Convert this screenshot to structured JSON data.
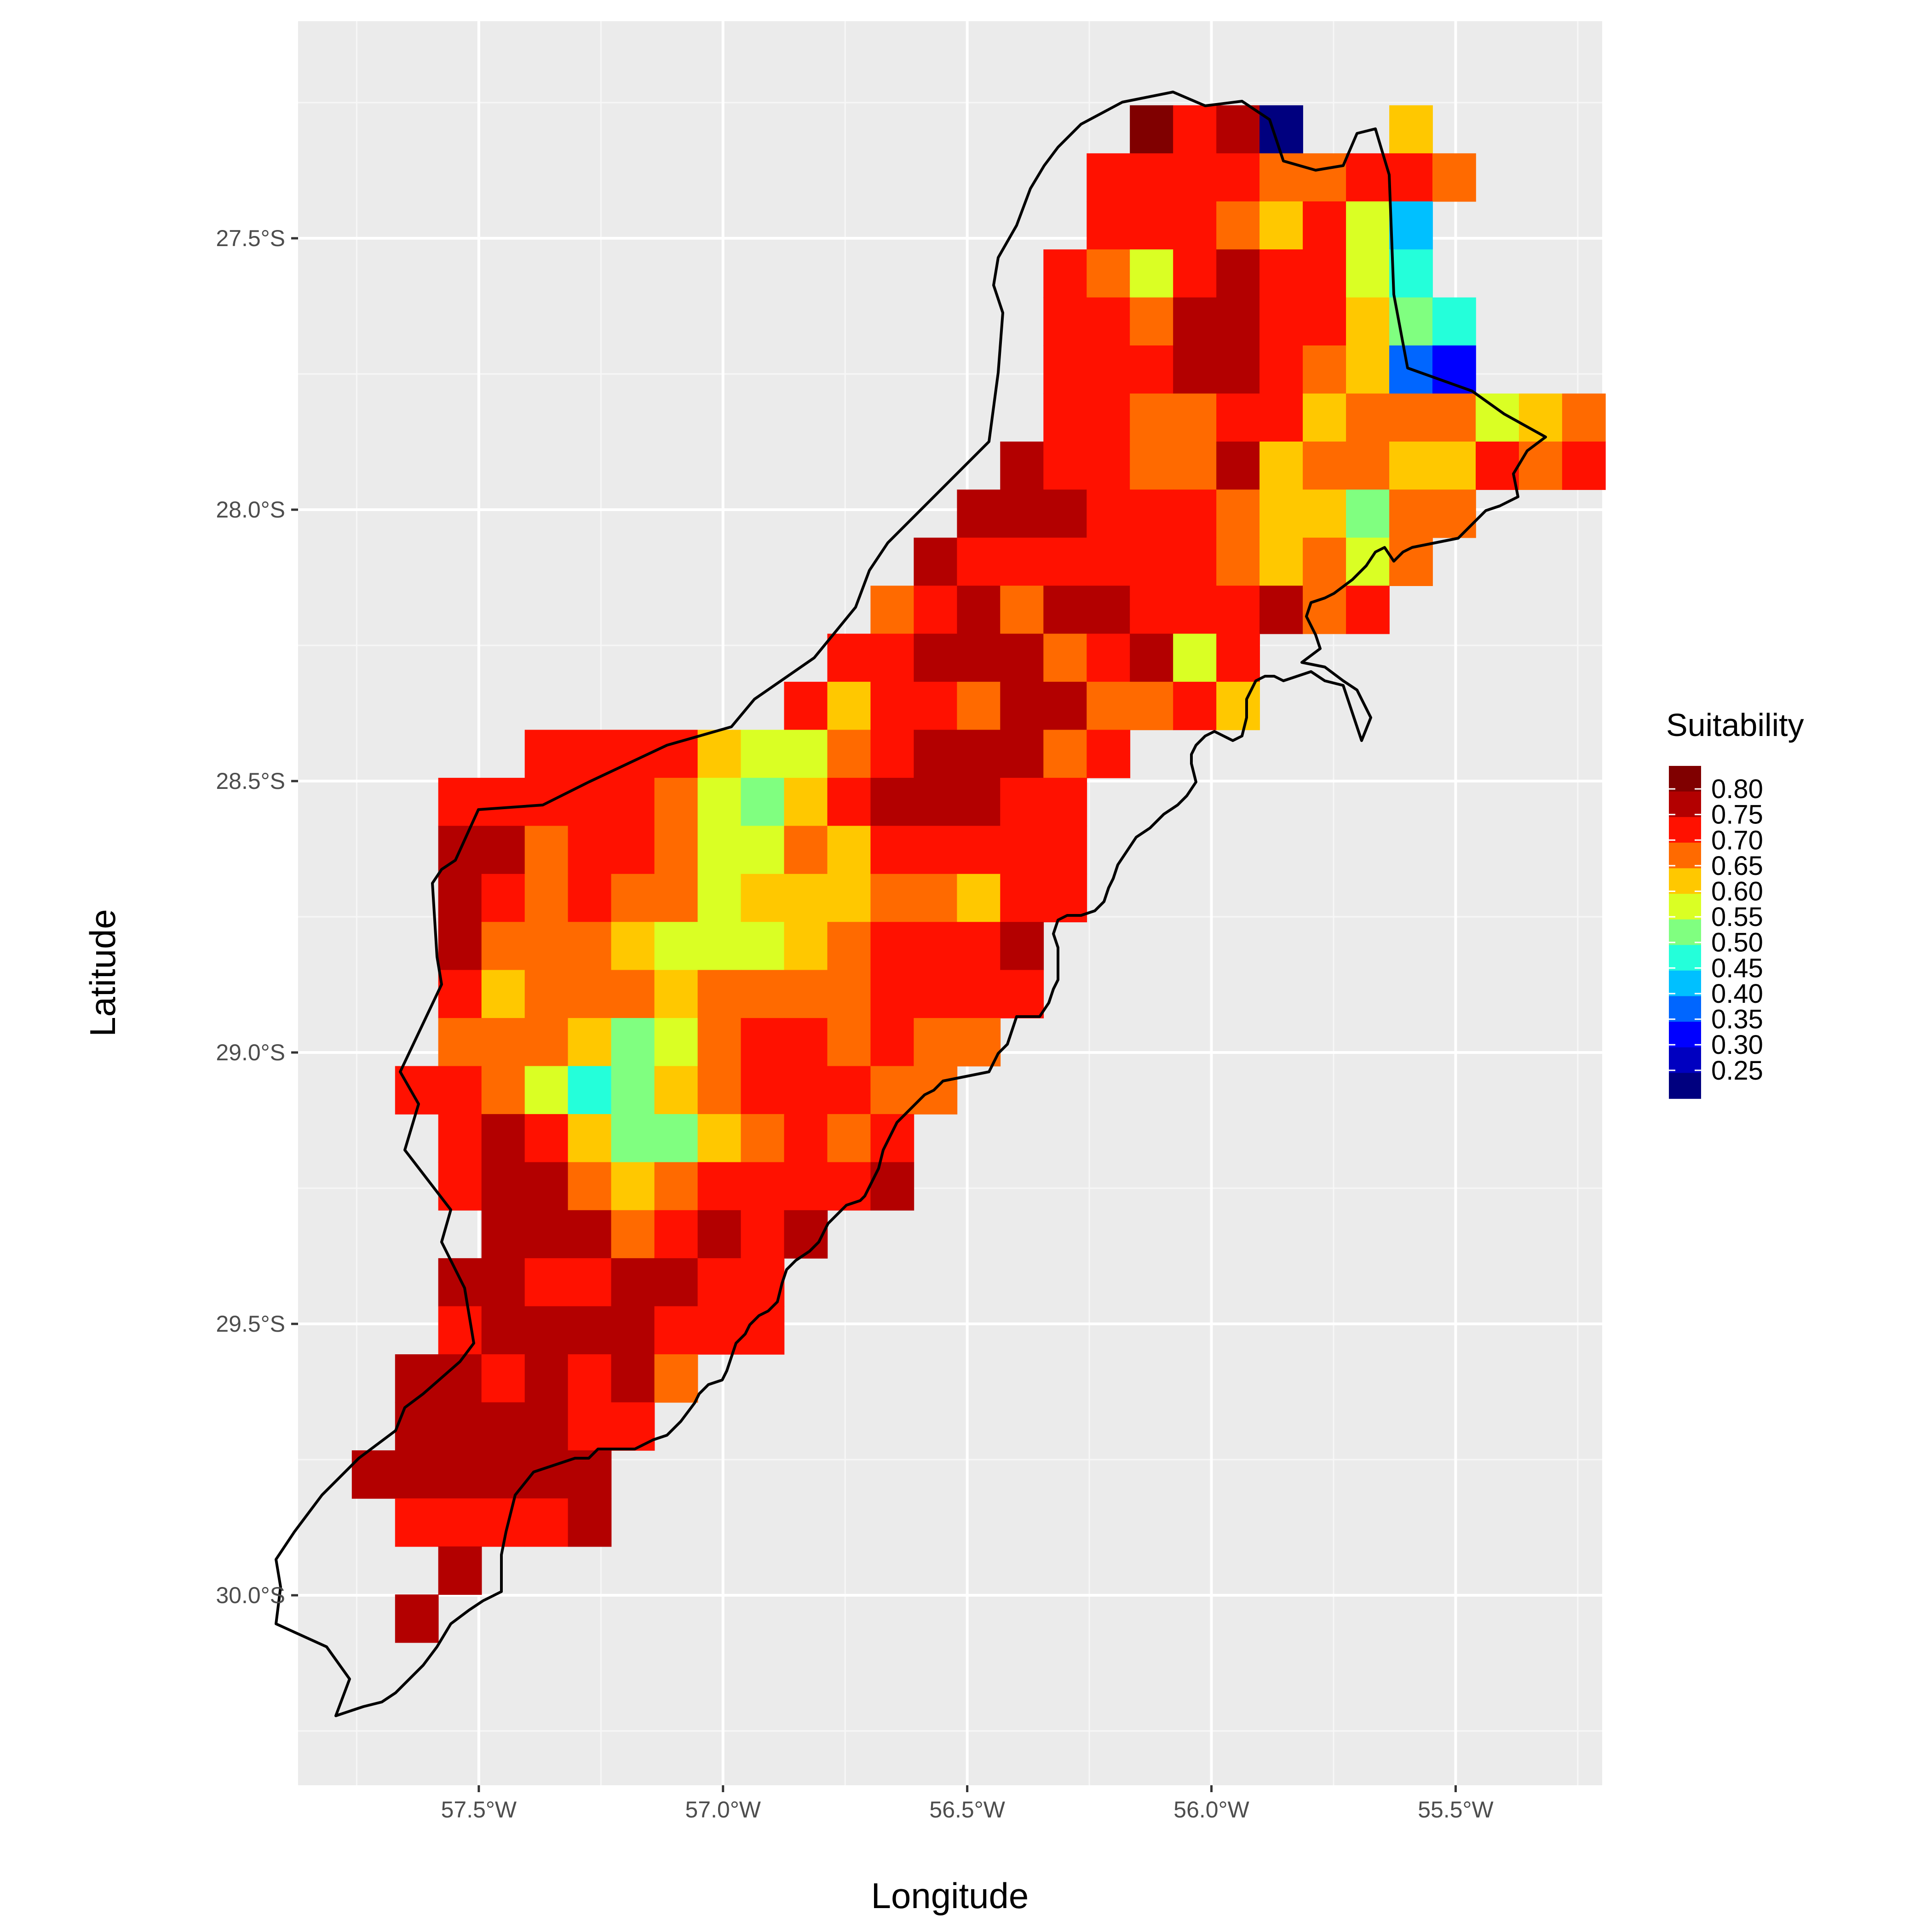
{
  "chart_data": {
    "type": "heatmap",
    "xlabel": "Longitude",
    "ylabel": "Latitude",
    "xlim": [
      -57.87,
      -55.2
    ],
    "ylim": [
      -30.35,
      -27.1
    ],
    "x_ticks": [
      {
        "value": -57.5,
        "label": "57.5°W"
      },
      {
        "value": -57.0,
        "label": "57.0°W"
      },
      {
        "value": -56.5,
        "label": "56.5°W"
      },
      {
        "value": -56.0,
        "label": "56.0°W"
      },
      {
        "value": -55.5,
        "label": "55.5°W"
      }
    ],
    "y_ticks": [
      {
        "value": -27.5,
        "label": "27.5°S"
      },
      {
        "value": -28.0,
        "label": "28.0°S"
      },
      {
        "value": -28.5,
        "label": "28.5°S"
      },
      {
        "value": -29.0,
        "label": "29.0°S"
      },
      {
        "value": -29.5,
        "label": "29.5°S"
      },
      {
        "value": -30.0,
        "label": "30.0°S"
      }
    ],
    "grid": true,
    "grid_origin": {
      "lon": -57.76,
      "lat": -27.255
    },
    "cell_deg": 0.0885,
    "legend": {
      "title": "Suitability",
      "position": "right",
      "labels": [
        "0.80",
        "0.75",
        "0.70",
        "0.65",
        "0.60",
        "0.55",
        "0.50",
        "0.45",
        "0.40",
        "0.35",
        "0.30",
        "0.25"
      ]
    },
    "value_scale": [
      {
        "key": "a",
        "value": 0.82,
        "color": "#800000"
      },
      {
        "key": "b",
        "value": 0.77,
        "color": "#b30000"
      },
      {
        "key": "c",
        "value": 0.72,
        "color": "#ff1100"
      },
      {
        "key": "d",
        "value": 0.67,
        "color": "#ff6a00"
      },
      {
        "key": "e",
        "value": 0.62,
        "color": "#ffc800"
      },
      {
        "key": "f",
        "value": 0.57,
        "color": "#daff24"
      },
      {
        "key": "g",
        "value": 0.52,
        "color": "#80ff80"
      },
      {
        "key": "h",
        "value": 0.47,
        "color": "#24ffda"
      },
      {
        "key": "i",
        "value": 0.42,
        "color": "#00c0ff"
      },
      {
        "key": "j",
        "value": 0.37,
        "color": "#0066ff"
      },
      {
        "key": "k",
        "value": 0.32,
        "color": "#0000ff"
      },
      {
        "key": "l",
        "value": 0.27,
        "color": "#0000c0"
      },
      {
        "key": "m",
        "value": 0.22,
        "color": "#00007f"
      }
    ],
    "rows": [
      "..................acbm..e.....",
      ".................ccccddccd.....",
      ".................cccdecfi.....",
      "................cdfcbccfh.....",
      "................ccdbbccegh....",
      "................cccbbcdejk....",
      "................ccddccedddfed.",
      "...............bccddbeddeecdc.",
      "..............bbbcccdeegdd....",
      ".............bccccccdedfd.....",
      "............dcbdbbcccbdc......",
      "...........ccbbbdcbfc.........",
      "..........ceccdbbddce.........",
      "....cccceffdcbbbdc............",
      "..cccccdfgecbbbcc.............",
      "..bbdccdffdeccccc.............",
      "..bcdcddfeeeddecc.............",
      "..bdddefffedcccb..............",
      "..cedddeddddcccc..............",
      "..dddegfdccdcdd...............",
      ".ccdfhgedcccdd................",
      "..cbceggedcdc.................",
      "..cbbdedccccb.................",
      "...bbbdcbcb...................",
      "..bbccbbcc....................",
      "..cbbbbccc....................",
      ".bbcbcbd......................",
      ".bbbbcc.......................",
      "bbbbbb........................",
      ".ccccb........................",
      "..b...........................",
      ".b............................"
    ]
  }
}
